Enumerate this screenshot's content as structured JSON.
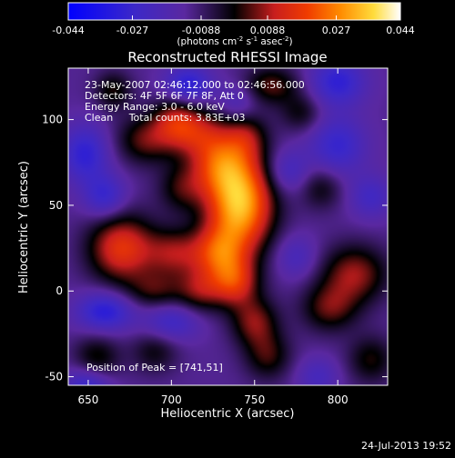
{
  "chart_data": {
    "type": "heatmap",
    "title": "Reconstructed RHESSI Image",
    "xlabel": "Heliocentric X (arcsec)",
    "ylabel": "Heliocentric Y (arcsec)",
    "xlim": [
      638,
      830
    ],
    "ylim": [
      -55,
      130
    ],
    "x_ticks": [
      650,
      700,
      750,
      800
    ],
    "y_ticks": [
      -50,
      0,
      50,
      100
    ],
    "colorbar": {
      "min": -0.044,
      "max": 0.044,
      "ticks": [
        "-0.044",
        "-0.027",
        "-0.0088",
        "0.0088",
        "0.027",
        "0.044"
      ],
      "unit_label": "(photons cm",
      "unit_exp1": "-2",
      "unit_mid": " s",
      "unit_exp2": "-1",
      "unit_mid2": " asec",
      "unit_exp3": "-2",
      "unit_end": ")"
    },
    "annotations": {
      "time": "23-May-2007 02:46:12.000 to 02:46:56.000",
      "detectors": "Detectors: 4F 5F 6F 7F 8F, Att 0",
      "energy": "Energy Range: 3.0 - 6.0 keV",
      "clean": "Clean     Total counts: 3.83E+03",
      "peak": "Position of Peak = [741,51]"
    },
    "peak": [
      741,
      51
    ],
    "sources": [
      {
        "x": 741,
        "y": 51,
        "v": 0.046,
        "sx": 14,
        "sy": 20
      },
      {
        "x": 728,
        "y": 74,
        "v": 0.022,
        "sx": 12,
        "sy": 12
      },
      {
        "x": 716,
        "y": 92,
        "v": 0.018,
        "sx": 14,
        "sy": 10
      },
      {
        "x": 703,
        "y": 100,
        "v": 0.018,
        "sx": 10,
        "sy": 10
      },
      {
        "x": 684,
        "y": 88,
        "v": 0.016,
        "sx": 12,
        "sy": 10
      },
      {
        "x": 665,
        "y": 117,
        "v": 0.013,
        "sx": 8,
        "sy": 8
      },
      {
        "x": 760,
        "y": 120,
        "v": 0.016,
        "sx": 12,
        "sy": 8
      },
      {
        "x": 778,
        "y": 104,
        "v": 0.011,
        "sx": 9,
        "sy": 8
      },
      {
        "x": 745,
        "y": 90,
        "v": 0.014,
        "sx": 9,
        "sy": 10
      },
      {
        "x": 706,
        "y": 60,
        "v": 0.013,
        "sx": 10,
        "sy": 10
      },
      {
        "x": 670,
        "y": 25,
        "v": 0.028,
        "sx": 14,
        "sy": 14
      },
      {
        "x": 702,
        "y": 22,
        "v": 0.018,
        "sx": 12,
        "sy": 10
      },
      {
        "x": 728,
        "y": 22,
        "v": 0.024,
        "sx": 11,
        "sy": 11
      },
      {
        "x": 738,
        "y": 5,
        "v": 0.024,
        "sx": 10,
        "sy": 10
      },
      {
        "x": 717,
        "y": 0,
        "v": 0.016,
        "sx": 10,
        "sy": 9
      },
      {
        "x": 690,
        "y": 0,
        "v": 0.013,
        "sx": 12,
        "sy": 8
      },
      {
        "x": 750,
        "y": -18,
        "v": 0.018,
        "sx": 10,
        "sy": 10
      },
      {
        "x": 758,
        "y": -38,
        "v": 0.014,
        "sx": 10,
        "sy": 10
      },
      {
        "x": 810,
        "y": 10,
        "v": 0.02,
        "sx": 14,
        "sy": 12
      },
      {
        "x": 795,
        "y": -10,
        "v": 0.016,
        "sx": 12,
        "sy": 10
      },
      {
        "x": 820,
        "y": -40,
        "v": 0.013,
        "sx": 10,
        "sy": 10
      },
      {
        "x": 790,
        "y": 60,
        "v": 0.011,
        "sx": 9,
        "sy": 9
      },
      {
        "x": 655,
        "y": -40,
        "v": 0.014,
        "sx": 10,
        "sy": 10
      },
      {
        "x": 690,
        "y": -35,
        "v": 0.011,
        "sx": 10,
        "sy": 9
      },
      {
        "x": 648,
        "y": 80,
        "v": -0.018,
        "sx": 10,
        "sy": 12
      },
      {
        "x": 660,
        "y": 55,
        "v": -0.016,
        "sx": 9,
        "sy": 9
      },
      {
        "x": 710,
        "y": 120,
        "v": -0.02,
        "sx": 10,
        "sy": 8
      },
      {
        "x": 800,
        "y": 122,
        "v": -0.018,
        "sx": 12,
        "sy": 10
      },
      {
        "x": 800,
        "y": 85,
        "v": -0.016,
        "sx": 12,
        "sy": 12
      },
      {
        "x": 770,
        "y": 70,
        "v": -0.012,
        "sx": 9,
        "sy": 9
      },
      {
        "x": 660,
        "y": -12,
        "v": -0.02,
        "sx": 12,
        "sy": 8
      },
      {
        "x": 700,
        "y": -18,
        "v": -0.014,
        "sx": 12,
        "sy": 8
      },
      {
        "x": 775,
        "y": 20,
        "v": -0.01,
        "sx": 9,
        "sy": 9
      },
      {
        "x": 820,
        "y": 55,
        "v": -0.012,
        "sx": 9,
        "sy": 9
      },
      {
        "x": 650,
        "y": -55,
        "v": -0.018,
        "sx": 10,
        "sy": 8
      },
      {
        "x": 788,
        "y": -50,
        "v": -0.01,
        "sx": 9,
        "sy": 8
      },
      {
        "x": 740,
        "y": 110,
        "v": -0.01,
        "sx": 8,
        "sy": 8
      }
    ]
  },
  "footer": {
    "date": "24-Jul-2013 19:52"
  }
}
